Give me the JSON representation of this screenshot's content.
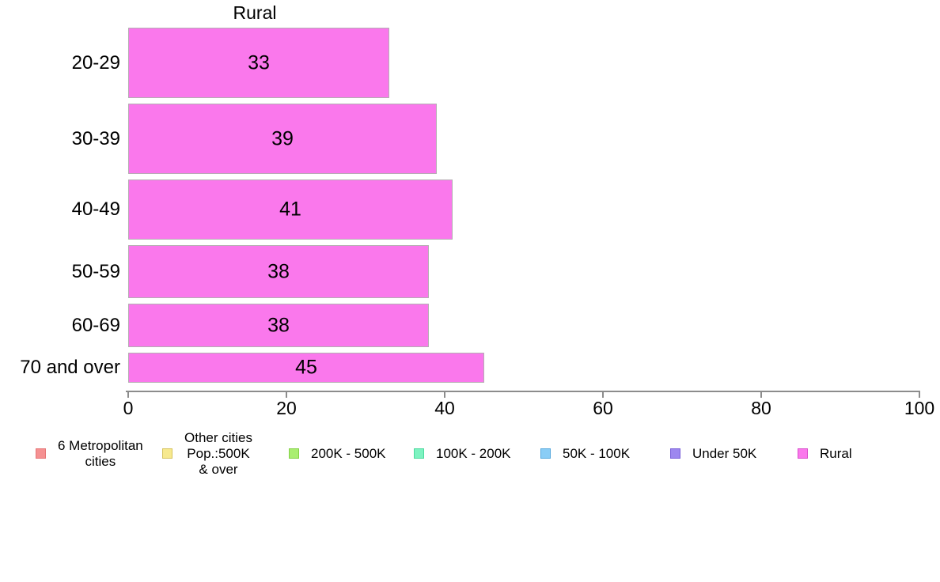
{
  "chart_data": {
    "type": "bar",
    "orientation": "horizontal",
    "title": "Rural",
    "categories": [
      "20-29",
      "30-39",
      "40-49",
      "50-59",
      "60-69",
      "70 and over"
    ],
    "values": [
      33,
      39,
      41,
      38,
      38,
      45
    ],
    "value_labels": [
      "33",
      "39",
      "41",
      "38",
      "38",
      "45"
    ],
    "bar_thickness_px": [
      89,
      89,
      76,
      67,
      55,
      38
    ],
    "xlim": [
      0,
      100
    ],
    "x_tick_values": [
      0,
      20,
      40,
      60,
      80,
      100
    ],
    "x_tick_labels": [
      "0",
      "20",
      "40",
      "60",
      "80",
      "100"
    ],
    "grid": false,
    "legend_position": "bottom",
    "colors": {
      "bar_fill": "#fa78ec",
      "bar_border": "#b5adb3",
      "axis": "#8c8c8c",
      "text": "#000000"
    },
    "legend": [
      {
        "name": "6-metropolitan-cities",
        "label_lines": [
          "6 Metropolitan",
          "cities"
        ],
        "fill": "#f59192",
        "border": "#e67576"
      },
      {
        "name": "other-cities-pop-500k-and-over",
        "label_lines": [
          "Other cities",
          "Pop.:500K",
          "& over"
        ],
        "fill": "#f7e98e",
        "border": "#d6c35e"
      },
      {
        "name": "200k-500k",
        "label_lines": [
          "200K - 500K"
        ],
        "fill": "#a9ee71",
        "border": "#82d145"
      },
      {
        "name": "100k-200k",
        "label_lines": [
          "100K - 200K"
        ],
        "fill": "#7df3c1",
        "border": "#4cd99e"
      },
      {
        "name": "50k-100k",
        "label_lines": [
          "50K - 100K"
        ],
        "fill": "#8acdf6",
        "border": "#57a9dd"
      },
      {
        "name": "under-50k",
        "label_lines": [
          "Under 50K"
        ],
        "fill": "#9d87ef",
        "border": "#7a60d9"
      },
      {
        "name": "rural",
        "label_lines": [
          "Rural"
        ],
        "fill": "#fa78ec",
        "border": "#d94fcb"
      }
    ]
  }
}
